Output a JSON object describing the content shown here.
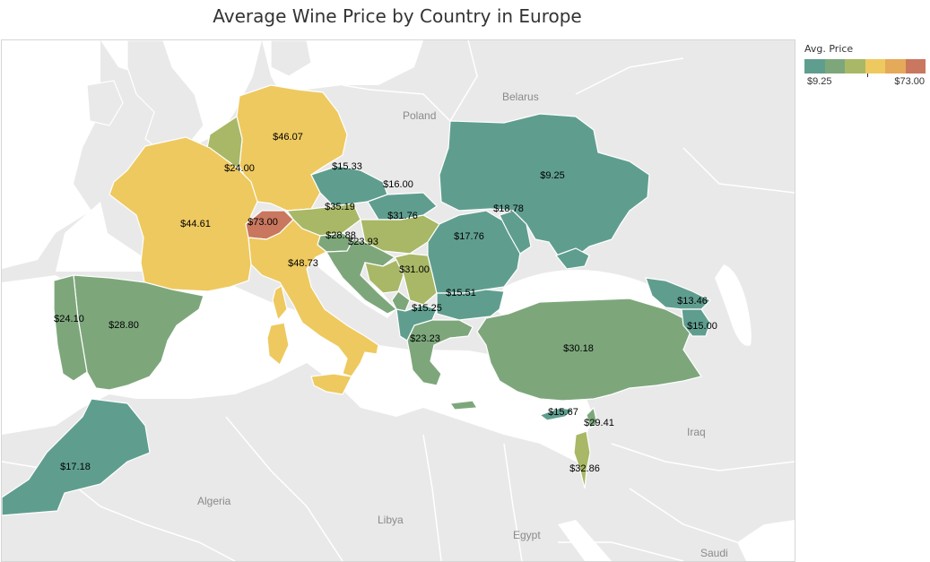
{
  "title": "Average Wine Price by Country in Europe",
  "legend": {
    "title": "Avg. Price",
    "min_label": "$9.25",
    "max_label": "$73.00",
    "colors": [
      "#5f9e8f",
      "#7da77b",
      "#a8b866",
      "#eec95f",
      "#e5a95a",
      "#c9775f"
    ]
  },
  "colors": {
    "sea": "#ffffff",
    "land": "#e9e9e9",
    "border": "#ffffff",
    "geo_label": "#8a8a8a"
  },
  "geo_labels": {
    "belarus": "Belarus",
    "poland": "Poland",
    "algeria": "Algeria",
    "libya": "Libya",
    "egypt": "Egypt",
    "iraq": "Iraq",
    "saudi": "Saudi"
  },
  "chart_data": {
    "type": "choropleth",
    "title": "Average Wine Price by Country in Europe",
    "measure": "Avg. Price",
    "range": [
      9.25,
      73.0
    ],
    "labels": [
      {
        "label": "$46.07",
        "value": 46.07
      },
      {
        "label": "$24.00",
        "value": 24.0
      },
      {
        "label": "$44.61",
        "value": 44.61
      },
      {
        "label": "$73.00",
        "value": 73.0
      },
      {
        "label": "$48.73",
        "value": 48.73
      },
      {
        "label": "$24.10",
        "value": 24.1
      },
      {
        "label": "$28.80",
        "value": 28.8
      },
      {
        "label": "$17.18",
        "value": 17.18
      },
      {
        "label": "$15.33",
        "value": 15.33
      },
      {
        "label": "$16.00",
        "value": 16.0
      },
      {
        "label": "$35.19",
        "value": 35.19
      },
      {
        "label": "$31.76",
        "value": 31.76
      },
      {
        "label": "$28.88",
        "value": 28.88
      },
      {
        "label": "$23.93",
        "value": 23.93
      },
      {
        "label": "$31.00",
        "value": 31.0
      },
      {
        "label": "$15.51",
        "value": 15.51
      },
      {
        "label": "$15.25",
        "value": 15.25
      },
      {
        "label": "$23.23",
        "value": 23.23
      },
      {
        "label": "$17.76",
        "value": 17.76
      },
      {
        "label": "$18.78",
        "value": 18.78
      },
      {
        "label": "$9.25",
        "value": 9.25
      },
      {
        "label": "$30.18",
        "value": 30.18
      },
      {
        "label": "$13.46",
        "value": 13.46
      },
      {
        "label": "$15.00",
        "value": 15.0
      },
      {
        "label": "$15.67",
        "value": 15.67
      },
      {
        "label": "$29.41",
        "value": 29.41
      },
      {
        "label": "$32.86",
        "value": 32.86
      }
    ]
  }
}
